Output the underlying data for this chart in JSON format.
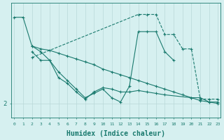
{
  "bg_color": "#d6f0f0",
  "line_color": "#1a7a6e",
  "grid_color": "#b8d8d8",
  "xlabel": "Humidex (Indice chaleur)",
  "xlabel_fontsize": 7,
  "ylabel_val": "2",
  "ytick_val": 2,
  "xmin": 0,
  "xmax": 23,
  "ymin": 1.5,
  "ymax": 5.5,
  "series": [
    {
      "x": [
        0,
        1,
        2,
        3,
        4,
        5,
        6,
        7,
        8,
        9,
        10,
        11,
        12,
        13,
        14,
        15,
        16,
        17,
        18
      ],
      "y": [
        5.0,
        5.0,
        4.0,
        3.8,
        3.5,
        3.1,
        2.8,
        2.5,
        2.2,
        2.35,
        2.5,
        2.2,
        2.05,
        2.6,
        4.5,
        4.5,
        4.5,
        3.8,
        3.5
      ]
    },
    {
      "x": [
        2,
        3,
        4,
        5,
        6,
        7,
        8,
        9,
        10,
        11,
        12,
        13,
        14,
        15,
        16,
        17,
        18,
        19,
        20,
        21,
        22,
        23
      ],
      "y": [
        4.0,
        3.9,
        3.85,
        3.75,
        3.65,
        3.55,
        3.45,
        3.35,
        3.2,
        3.1,
        3.0,
        2.9,
        2.8,
        2.7,
        2.6,
        2.5,
        2.4,
        2.3,
        2.2,
        2.1,
        2.05,
        2.0
      ]
    },
    {
      "x": [
        2,
        3,
        4,
        5,
        6,
        7,
        8,
        9,
        10,
        11,
        12,
        13,
        14,
        15,
        16,
        17,
        20,
        21,
        22,
        23
      ],
      "y": [
        3.8,
        3.5,
        3.5,
        2.9,
        2.7,
        2.4,
        2.15,
        2.4,
        2.55,
        2.5,
        2.4,
        2.4,
        2.45,
        2.4,
        2.35,
        2.3,
        2.2,
        2.2,
        2.05,
        2.05
      ]
    },
    {
      "x": [
        2,
        14,
        15,
        16,
        17,
        18,
        19,
        20,
        21,
        22,
        23
      ],
      "y": [
        3.6,
        5.1,
        5.1,
        5.1,
        4.4,
        4.4,
        3.9,
        3.9,
        2.15,
        2.15,
        2.15
      ],
      "dashed": true
    }
  ]
}
